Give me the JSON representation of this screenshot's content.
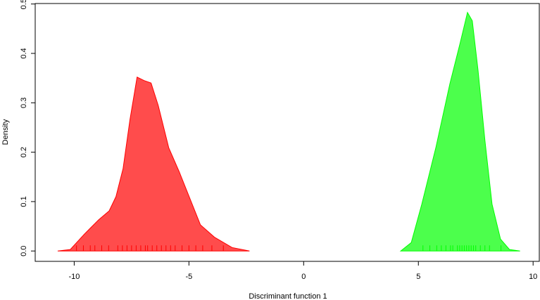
{
  "chart_data": {
    "type": "density",
    "xlabel": "Discriminant function 1",
    "ylabel": "Density",
    "xlim": [
      -11.7,
      10.27
    ],
    "ylim": [
      -0.021,
      0.501
    ],
    "xticks": [
      -10,
      -5,
      0,
      5,
      10
    ],
    "yticks": [
      {
        "value": 0,
        "label": "0.0"
      },
      0.1,
      0.2,
      0.3,
      0.4,
      0.5
    ],
    "series": [
      {
        "color": "#ff0000",
        "x": [
          -10.72,
          -10.17,
          -9.56,
          -8.94,
          -8.48,
          -8.18,
          -7.87,
          -7.57,
          -7.26,
          -6.95,
          -6.65,
          -6.34,
          -5.88,
          -5.42,
          -5.11,
          -4.5,
          -3.89,
          -3.12,
          -2.36
        ],
        "values": [
          0,
          0.003,
          0.034,
          0.063,
          0.081,
          0.11,
          0.167,
          0.266,
          0.352,
          0.345,
          0.34,
          0.295,
          0.209,
          0.16,
          0.124,
          0.053,
          0.028,
          0.007,
          0
        ],
        "rug": [
          -9.9,
          -9.6,
          -9.3,
          -9.1,
          -8.8,
          -8.5,
          -8.1,
          -7.9,
          -7.7,
          -7.5,
          -7.3,
          -7.1,
          -6.9,
          -6.8,
          -6.6,
          -6.4,
          -6.2,
          -6.0,
          -5.8,
          -5.6,
          -5.3,
          -5.0,
          -4.7,
          -4.4,
          -4.0,
          -3.5
        ]
      },
      {
        "color": "#00ff00",
        "x": [
          4.23,
          4.69,
          5.15,
          5.76,
          6.37,
          6.83,
          7.14,
          7.35,
          7.6,
          7.9,
          8.21,
          8.58,
          8.97,
          9.43
        ],
        "values": [
          0,
          0.017,
          0.095,
          0.209,
          0.338,
          0.423,
          0.483,
          0.466,
          0.366,
          0.224,
          0.095,
          0.024,
          0.003,
          0
        ],
        "rug": [
          5.2,
          5.5,
          5.8,
          6.0,
          6.2,
          6.4,
          6.5,
          6.7,
          6.8,
          6.9,
          7.0,
          7.1,
          7.2,
          7.3,
          7.4,
          7.5,
          7.7,
          7.9,
          8.1,
          8.6
        ]
      }
    ]
  }
}
